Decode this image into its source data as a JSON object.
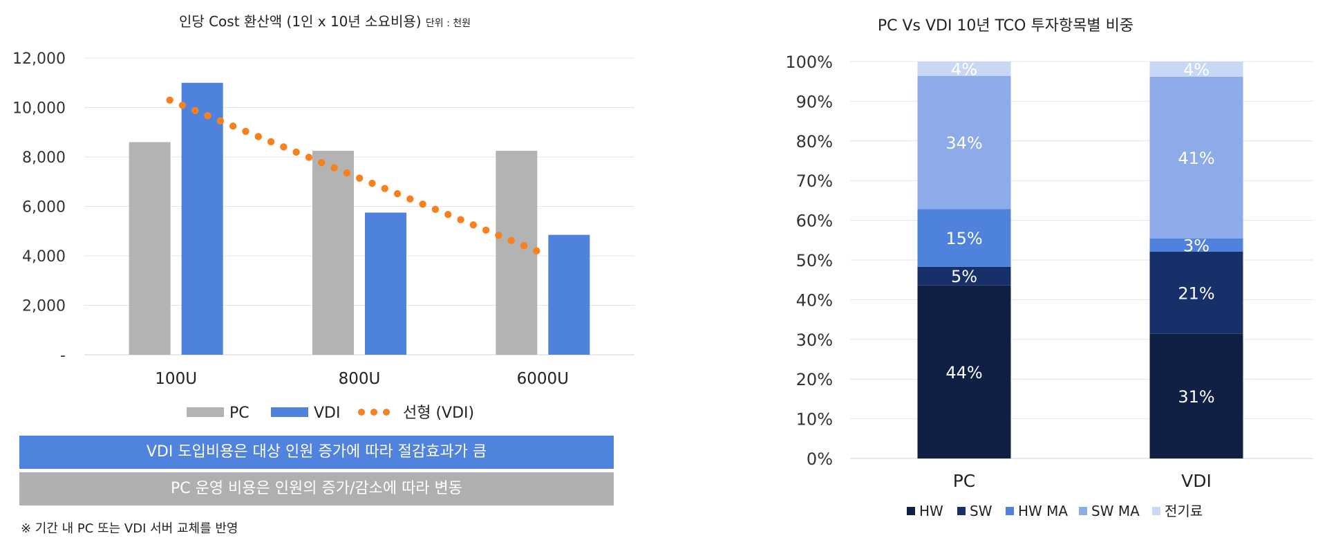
{
  "chart_data": [
    {
      "type": "bar",
      "title": "인당 Cost 환산액 (1인 x 10년 소요비용)",
      "unit_note": "단위 : 천원",
      "categories": [
        "100U",
        "800U",
        "6000U"
      ],
      "series": [
        {
          "name": "PC",
          "type": "bar",
          "color": "#b3b3b3",
          "values": [
            8600,
            8250,
            8250
          ]
        },
        {
          "name": "VDI",
          "type": "bar",
          "color": "#4f82dc",
          "values": [
            11000,
            5750,
            4850
          ]
        },
        {
          "name": "선형 (VDI)",
          "type": "trendline",
          "style": "dotted",
          "color": "#f5821f",
          "values": [
            10300,
            7250,
            4200
          ]
        }
      ],
      "yticks": [
        "-",
        "2,000",
        "4,000",
        "6,000",
        "8,000",
        "10,000",
        "12,000"
      ],
      "ylim": [
        0,
        12000
      ],
      "grid": true,
      "legend": "bottom"
    },
    {
      "type": "bar",
      "stacked": true,
      "title": "PC Vs VDI 10년 TCO 투자항목별 비중",
      "categories": [
        "PC",
        "VDI"
      ],
      "series": [
        {
          "name": "HW",
          "color": "#0f2044",
          "values": [
            0.436,
            0.314
          ],
          "labels": [
            "44%",
            "31%"
          ]
        },
        {
          "name": "SW",
          "color": "#17306a",
          "values": [
            0.047,
            0.207
          ],
          "labels": [
            "5%",
            "21%"
          ]
        },
        {
          "name": "HW MA",
          "color": "#4f82dc",
          "values": [
            0.145,
            0.033
          ],
          "labels": [
            "15%",
            "3%"
          ]
        },
        {
          "name": "SW MA",
          "color": "#8dabe8",
          "values": [
            0.336,
            0.408
          ],
          "labels": [
            "34%",
            "41%"
          ]
        },
        {
          "name": "전기료",
          "color": "#c8d7f4",
          "values": [
            0.036,
            0.038
          ],
          "labels": [
            "4%",
            "4%"
          ]
        }
      ],
      "yticks": [
        "0%",
        "10%",
        "20%",
        "30%",
        "40%",
        "50%",
        "60%",
        "70%",
        "80%",
        "90%",
        "100%"
      ],
      "ylim": [
        0,
        1
      ],
      "grid": true,
      "legend": "bottom"
    }
  ],
  "banners": {
    "blue": "VDI 도입비용은 대상 인원 증가에 따라 절감효과가 큼",
    "gray": "PC 운영 비용은 인원의 증가/감소에 따라 변동"
  },
  "footnote": "※ 기간 내 PC 또는 VDI 서버 교체를 반영"
}
